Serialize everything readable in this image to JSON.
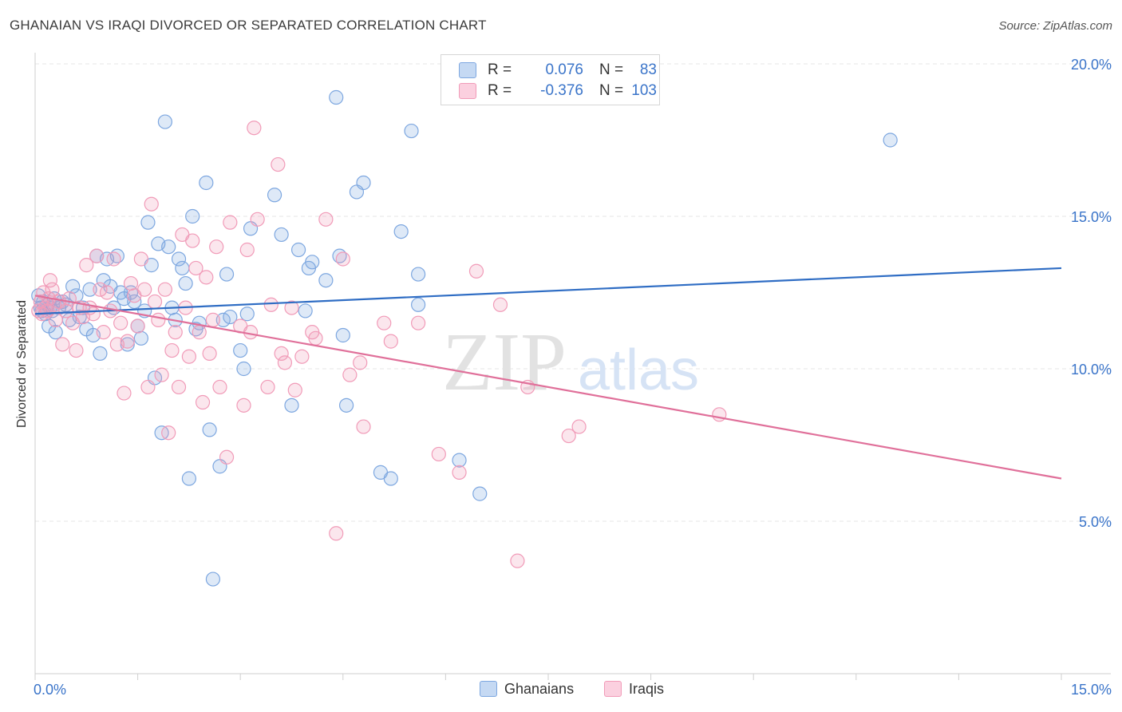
{
  "title": "GHANAIAN VS IRAQI DIVORCED OR SEPARATED CORRELATION CHART",
  "source": "Source: ZipAtlas.com",
  "watermark": {
    "zip": "ZIP",
    "atlas": "atlas"
  },
  "legend": {
    "rows": [
      {
        "r_label": "R =",
        "r_value": "0.076",
        "n_label": "N =",
        "n_value": "83",
        "color": "#7da7e0"
      },
      {
        "r_label": "R =",
        "r_value": "-0.376",
        "n_label": "N =",
        "n_value": "103",
        "color": "#f19bb8"
      }
    ]
  },
  "bottom_legend": [
    {
      "label": "Ghanaians",
      "color": "#7da7e0"
    },
    {
      "label": "Iraqis",
      "color": "#f19bb8"
    }
  ],
  "chart_data": {
    "type": "scatter",
    "title": "GHANAIAN VS IRAQI DIVORCED OR SEPARATED CORRELATION CHART",
    "xlabel": "",
    "ylabel": "Divorced or Separated",
    "xlim": [
      0,
      15
    ],
    "ylim": [
      0,
      20
    ],
    "x_tick_labels": [
      "0.0%",
      "15.0%"
    ],
    "y_ticks": [
      5,
      10,
      15,
      20
    ],
    "y_tick_labels": [
      "5.0%",
      "10.0%",
      "15.0%",
      "20.0%"
    ],
    "grid": true,
    "legend_position": "top-center",
    "series": [
      {
        "name": "Ghanaians",
        "color": "#7da7e0",
        "trend": [
          [
            0,
            11.8
          ],
          [
            15,
            13.3
          ]
        ],
        "points": [
          [
            0.05,
            12.4
          ],
          [
            0.08,
            12.0
          ],
          [
            0.1,
            11.9
          ],
          [
            0.12,
            12.2
          ],
          [
            0.15,
            11.8
          ],
          [
            0.18,
            12.1
          ],
          [
            0.2,
            11.4
          ],
          [
            0.22,
            12.0
          ],
          [
            0.25,
            11.9
          ],
          [
            0.28,
            12.3
          ],
          [
            0.3,
            11.2
          ],
          [
            0.35,
            12.0
          ],
          [
            0.4,
            12.2
          ],
          [
            0.45,
            12.1
          ],
          [
            0.5,
            11.6
          ],
          [
            0.55,
            12.7
          ],
          [
            0.6,
            12.4
          ],
          [
            0.65,
            11.7
          ],
          [
            0.7,
            12.0
          ],
          [
            0.75,
            11.3
          ],
          [
            0.8,
            12.6
          ],
          [
            0.85,
            11.1
          ],
          [
            0.9,
            13.7
          ],
          [
            0.95,
            10.5
          ],
          [
            1.0,
            12.9
          ],
          [
            1.05,
            13.6
          ],
          [
            1.1,
            12.7
          ],
          [
            1.15,
            12.0
          ],
          [
            1.2,
            13.7
          ],
          [
            1.25,
            12.5
          ],
          [
            1.3,
            12.3
          ],
          [
            1.35,
            10.8
          ],
          [
            1.4,
            12.5
          ],
          [
            1.45,
            12.2
          ],
          [
            1.5,
            11.4
          ],
          [
            1.55,
            11.0
          ],
          [
            1.6,
            11.9
          ],
          [
            1.65,
            14.8
          ],
          [
            1.7,
            13.4
          ],
          [
            1.75,
            9.7
          ],
          [
            1.8,
            14.1
          ],
          [
            1.85,
            7.9
          ],
          [
            1.9,
            18.1
          ],
          [
            1.95,
            14.0
          ],
          [
            2.0,
            12.0
          ],
          [
            2.05,
            11.6
          ],
          [
            2.1,
            13.6
          ],
          [
            2.15,
            13.3
          ],
          [
            2.2,
            12.8
          ],
          [
            2.25,
            6.4
          ],
          [
            2.3,
            15.0
          ],
          [
            2.35,
            11.3
          ],
          [
            2.4,
            11.5
          ],
          [
            2.5,
            16.1
          ],
          [
            2.55,
            8.0
          ],
          [
            2.6,
            3.1
          ],
          [
            2.7,
            6.8
          ],
          [
            2.75,
            11.6
          ],
          [
            2.8,
            13.1
          ],
          [
            2.85,
            11.7
          ],
          [
            3.0,
            10.6
          ],
          [
            3.05,
            10.0
          ],
          [
            3.1,
            11.8
          ],
          [
            3.15,
            14.6
          ],
          [
            3.5,
            15.7
          ],
          [
            3.6,
            14.4
          ],
          [
            3.75,
            8.8
          ],
          [
            3.85,
            13.9
          ],
          [
            3.95,
            11.9
          ],
          [
            4.0,
            13.3
          ],
          [
            4.05,
            13.5
          ],
          [
            4.25,
            12.9
          ],
          [
            4.4,
            18.9
          ],
          [
            4.45,
            13.7
          ],
          [
            4.5,
            11.1
          ],
          [
            4.55,
            8.8
          ],
          [
            4.7,
            15.8
          ],
          [
            4.8,
            16.1
          ],
          [
            5.05,
            6.6
          ],
          [
            5.2,
            6.4
          ],
          [
            5.35,
            14.5
          ],
          [
            5.5,
            17.8
          ],
          [
            5.6,
            13.1
          ],
          [
            5.6,
            12.1
          ],
          [
            6.2,
            7.0
          ],
          [
            6.5,
            5.9
          ],
          [
            12.5,
            17.5
          ]
        ]
      },
      {
        "name": "Iraqis",
        "color": "#f19bb8",
        "trend": [
          [
            0,
            12.4
          ],
          [
            15,
            6.4
          ]
        ],
        "points": [
          [
            0.05,
            11.9
          ],
          [
            0.08,
            12.2
          ],
          [
            0.1,
            11.8
          ],
          [
            0.12,
            12.5
          ],
          [
            0.15,
            12.0
          ],
          [
            0.18,
            11.9
          ],
          [
            0.2,
            12.3
          ],
          [
            0.22,
            12.9
          ],
          [
            0.25,
            12.6
          ],
          [
            0.28,
            12.1
          ],
          [
            0.3,
            11.6
          ],
          [
            0.35,
            12.2
          ],
          [
            0.4,
            10.8
          ],
          [
            0.45,
            11.9
          ],
          [
            0.5,
            12.3
          ],
          [
            0.55,
            11.5
          ],
          [
            0.6,
            10.6
          ],
          [
            0.65,
            12.0
          ],
          [
            0.7,
            11.7
          ],
          [
            0.75,
            13.4
          ],
          [
            0.8,
            12.0
          ],
          [
            0.85,
            11.8
          ],
          [
            0.9,
            13.7
          ],
          [
            0.95,
            12.6
          ],
          [
            1.0,
            11.2
          ],
          [
            1.05,
            12.5
          ],
          [
            1.1,
            11.9
          ],
          [
            1.15,
            13.6
          ],
          [
            1.2,
            10.8
          ],
          [
            1.25,
            11.5
          ],
          [
            1.3,
            9.2
          ],
          [
            1.35,
            10.9
          ],
          [
            1.4,
            12.8
          ],
          [
            1.45,
            12.4
          ],
          [
            1.5,
            11.4
          ],
          [
            1.55,
            13.6
          ],
          [
            1.6,
            12.6
          ],
          [
            1.65,
            9.4
          ],
          [
            1.7,
            15.4
          ],
          [
            1.75,
            12.2
          ],
          [
            1.8,
            11.6
          ],
          [
            1.85,
            9.8
          ],
          [
            1.9,
            12.6
          ],
          [
            1.95,
            7.9
          ],
          [
            2.0,
            10.6
          ],
          [
            2.05,
            11.2
          ],
          [
            2.1,
            9.4
          ],
          [
            2.15,
            14.4
          ],
          [
            2.2,
            12.0
          ],
          [
            2.25,
            10.4
          ],
          [
            2.3,
            14.2
          ],
          [
            2.35,
            13.3
          ],
          [
            2.4,
            11.2
          ],
          [
            2.45,
            8.9
          ],
          [
            2.5,
            13.0
          ],
          [
            2.55,
            10.5
          ],
          [
            2.6,
            11.6
          ],
          [
            2.65,
            14.0
          ],
          [
            2.7,
            9.4
          ],
          [
            2.8,
            7.1
          ],
          [
            2.85,
            14.8
          ],
          [
            3.0,
            11.4
          ],
          [
            3.05,
            8.8
          ],
          [
            3.1,
            13.9
          ],
          [
            3.15,
            11.2
          ],
          [
            3.2,
            17.9
          ],
          [
            3.25,
            14.9
          ],
          [
            3.4,
            9.4
          ],
          [
            3.45,
            12.1
          ],
          [
            3.55,
            16.7
          ],
          [
            3.6,
            10.5
          ],
          [
            3.65,
            10.2
          ],
          [
            3.75,
            12.0
          ],
          [
            3.8,
            9.3
          ],
          [
            3.9,
            10.4
          ],
          [
            4.05,
            11.2
          ],
          [
            4.1,
            11.0
          ],
          [
            4.25,
            14.9
          ],
          [
            4.4,
            4.6
          ],
          [
            4.5,
            13.6
          ],
          [
            4.6,
            9.8
          ],
          [
            4.75,
            10.2
          ],
          [
            4.8,
            8.1
          ],
          [
            5.1,
            11.5
          ],
          [
            5.2,
            10.9
          ],
          [
            5.6,
            11.5
          ],
          [
            5.9,
            7.2
          ],
          [
            6.2,
            6.6
          ],
          [
            6.45,
            13.2
          ],
          [
            6.8,
            12.1
          ],
          [
            7.05,
            3.7
          ],
          [
            7.2,
            9.4
          ],
          [
            7.8,
            7.8
          ],
          [
            7.95,
            8.1
          ],
          [
            10.0,
            8.5
          ]
        ]
      }
    ]
  }
}
